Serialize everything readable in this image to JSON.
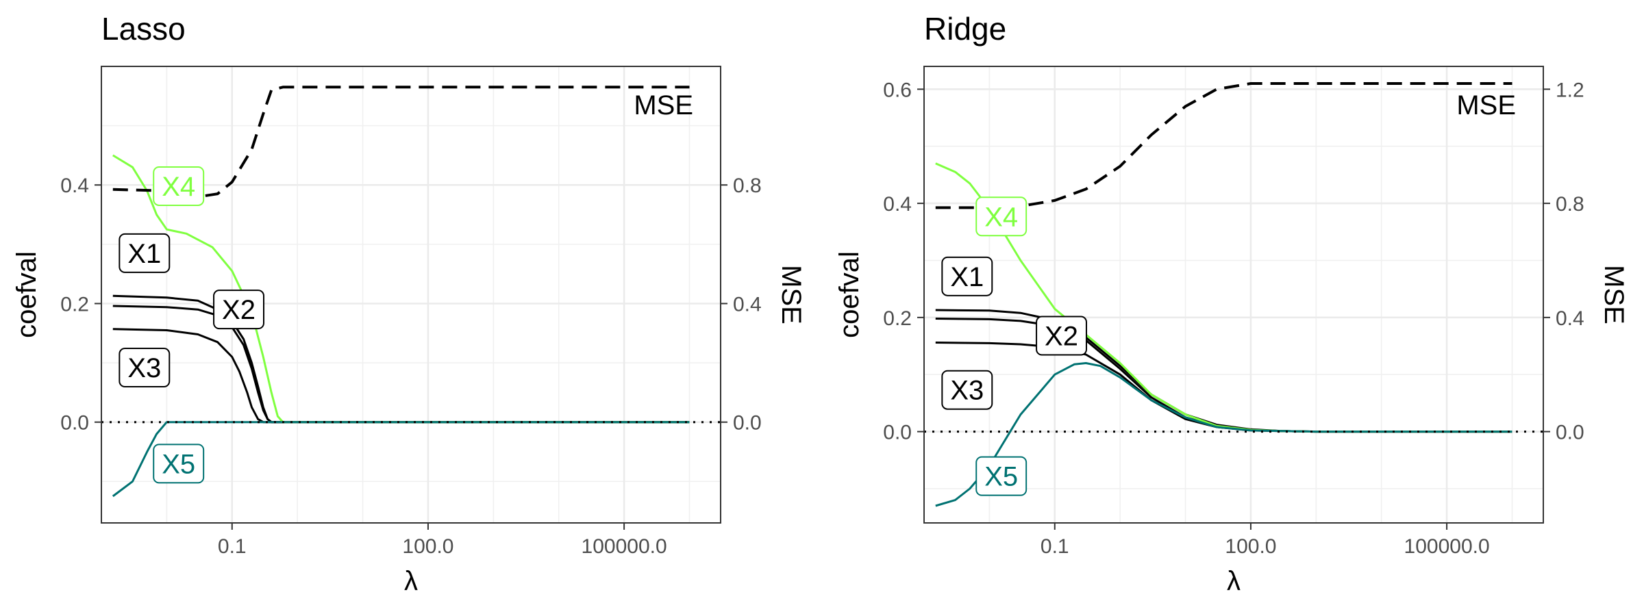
{
  "chart_data": [
    {
      "type": "line",
      "title": "Lasso",
      "xlabel": "λ",
      "ylabel": "coefval",
      "y2label": "MSE",
      "x_scale": "log10",
      "xlim": [
        0.001,
        3000000
      ],
      "ylim": [
        -0.17,
        0.6
      ],
      "y2lim": [
        -0.34,
        1.2
      ],
      "x_ticks": [
        0.1,
        100,
        100000
      ],
      "x_tick_labels": [
        "0.1",
        "100.0",
        "100000.0"
      ],
      "y_ticks": [
        0,
        0.2,
        0.4
      ],
      "y_tick_labels": [
        "0.0",
        "0.2",
        "0.4"
      ],
      "y2_ticks": [
        0,
        0.4,
        0.8
      ],
      "y2_tick_labels": [
        "0.0",
        "0.4",
        "0.8"
      ],
      "grid": true,
      "zero_line": "dotted",
      "series": [
        {
          "name": "X1",
          "color": "#000000",
          "x": [
            0.0015,
            0.01,
            0.03,
            0.06,
            0.1,
            0.15,
            0.2,
            0.25,
            0.3,
            0.35,
            0.4,
            1,
            1000000
          ],
          "y": [
            0.213,
            0.21,
            0.205,
            0.19,
            0.17,
            0.14,
            0.1,
            0.06,
            0.025,
            0.005,
            0,
            0,
            0
          ]
        },
        {
          "name": "X2",
          "color": "#000000",
          "x": [
            0.0015,
            0.01,
            0.03,
            0.06,
            0.1,
            0.15,
            0.2,
            0.25,
            0.3,
            0.35,
            0.4,
            1,
            1000000
          ],
          "y": [
            0.196,
            0.194,
            0.19,
            0.18,
            0.16,
            0.13,
            0.09,
            0.05,
            0.02,
            0.005,
            0,
            0,
            0
          ]
        },
        {
          "name": "X3",
          "color": "#000000",
          "x": [
            0.0015,
            0.01,
            0.03,
            0.06,
            0.1,
            0.13,
            0.17,
            0.2,
            0.25,
            0.3,
            1,
            1000000
          ],
          "y": [
            0.157,
            0.155,
            0.148,
            0.135,
            0.11,
            0.085,
            0.05,
            0.025,
            0.005,
            0,
            0,
            0
          ]
        },
        {
          "name": "X4",
          "color": "#7FFF3F",
          "x": [
            0.0015,
            0.003,
            0.005,
            0.007,
            0.01,
            0.02,
            0.05,
            0.1,
            0.2,
            0.3,
            0.4,
            0.5,
            0.6,
            1,
            1000000
          ],
          "y": [
            0.45,
            0.43,
            0.39,
            0.35,
            0.325,
            0.318,
            0.295,
            0.255,
            0.185,
            0.11,
            0.05,
            0.01,
            0,
            0,
            0
          ]
        },
        {
          "name": "X5",
          "color": "#007272",
          "x": [
            0.0015,
            0.003,
            0.005,
            0.007,
            0.01,
            1000000
          ],
          "y": [
            -0.125,
            -0.1,
            -0.05,
            -0.02,
            0,
            0
          ]
        },
        {
          "name": "MSE",
          "axis": "right",
          "dash": "dashed",
          "color": "#000000",
          "x": [
            0.0015,
            0.01,
            0.03,
            0.06,
            0.1,
            0.2,
            0.3,
            0.4,
            0.6,
            1,
            1000000
          ],
          "y": [
            0.785,
            0.78,
            0.76,
            0.77,
            0.81,
            0.92,
            1.04,
            1.12,
            1.13,
            1.13,
            1.13
          ]
        }
      ],
      "labels": [
        {
          "text": "X1",
          "color": "#000000",
          "x": 0.0018,
          "y": 0.285
        },
        {
          "text": "X2",
          "color": "#000000",
          "x": 0.05,
          "y": 0.19
        },
        {
          "text": "X3",
          "color": "#000000",
          "x": 0.0018,
          "y": 0.092
        },
        {
          "text": "X4",
          "color": "#7FFF3F",
          "x": 0.006,
          "y": 0.398
        },
        {
          "text": "X5",
          "color": "#007272",
          "x": 0.006,
          "y": -0.07
        }
      ]
    },
    {
      "type": "line",
      "title": "Ridge",
      "xlabel": "λ",
      "ylabel": "coefval",
      "y2label": "MSE",
      "x_scale": "log10",
      "xlim": [
        0.001,
        3000000
      ],
      "ylim": [
        -0.16,
        0.64
      ],
      "y2lim": [
        -0.32,
        1.28
      ],
      "x_ticks": [
        0.1,
        100,
        100000
      ],
      "x_tick_labels": [
        "0.1",
        "100.0",
        "100000.0"
      ],
      "y_ticks": [
        0,
        0.2,
        0.4,
        0.6
      ],
      "y_tick_labels": [
        "0.0",
        "0.2",
        "0.4",
        "0.6"
      ],
      "y2_ticks": [
        0,
        0.4,
        0.8,
        1.2
      ],
      "y2_tick_labels": [
        "0.0",
        "0.4",
        "0.8",
        "1.2"
      ],
      "grid": true,
      "zero_line": "dotted",
      "series": [
        {
          "name": "X1",
          "color": "#000000",
          "x": [
            0.0015,
            0.01,
            0.03,
            0.1,
            0.3,
            1,
            3,
            10,
            30,
            100,
            300,
            1000,
            1000000
          ],
          "y": [
            0.213,
            0.212,
            0.208,
            0.195,
            0.165,
            0.115,
            0.065,
            0.03,
            0.012,
            0.004,
            0.001,
            0,
            0
          ]
        },
        {
          "name": "X2",
          "color": "#000000",
          "x": [
            0.0015,
            0.01,
            0.03,
            0.1,
            0.3,
            1,
            3,
            10,
            30,
            100,
            300,
            1000,
            1000000
          ],
          "y": [
            0.198,
            0.197,
            0.194,
            0.185,
            0.16,
            0.11,
            0.06,
            0.025,
            0.01,
            0.003,
            0.001,
            0,
            0
          ]
        },
        {
          "name": "X3",
          "color": "#000000",
          "x": [
            0.0015,
            0.01,
            0.03,
            0.1,
            0.3,
            1,
            3,
            10,
            30,
            100,
            300,
            1000,
            1000000
          ],
          "y": [
            0.156,
            0.155,
            0.153,
            0.148,
            0.135,
            0.1,
            0.055,
            0.022,
            0.008,
            0.002,
            0.001,
            0,
            0
          ]
        },
        {
          "name": "X4",
          "color": "#7FFF3F",
          "x": [
            0.0015,
            0.003,
            0.005,
            0.01,
            0.03,
            0.1,
            0.3,
            1,
            3,
            10,
            30,
            100,
            300,
            1000,
            1000000
          ],
          "y": [
            0.47,
            0.455,
            0.435,
            0.39,
            0.3,
            0.215,
            0.17,
            0.12,
            0.065,
            0.03,
            0.01,
            0.003,
            0.001,
            0,
            0
          ]
        },
        {
          "name": "X5",
          "color": "#007272",
          "x": [
            0.0015,
            0.003,
            0.005,
            0.01,
            0.03,
            0.1,
            0.2,
            0.3,
            0.5,
            1,
            3,
            10,
            30,
            100,
            1000,
            1000000
          ],
          "y": [
            -0.13,
            -0.12,
            -0.1,
            -0.06,
            0.03,
            0.1,
            0.118,
            0.12,
            0.115,
            0.095,
            0.055,
            0.025,
            0.008,
            0.002,
            0,
            0
          ]
        },
        {
          "name": "MSE",
          "axis": "right",
          "dash": "dashed",
          "color": "#000000",
          "x": [
            0.0015,
            0.01,
            0.03,
            0.1,
            0.3,
            1,
            3,
            10,
            30,
            100,
            300,
            1000,
            1000000
          ],
          "y": [
            0.785,
            0.785,
            0.79,
            0.81,
            0.85,
            0.93,
            1.04,
            1.14,
            1.2,
            1.22,
            1.22,
            1.22,
            1.22
          ]
        }
      ],
      "labels": [
        {
          "text": "X1",
          "color": "#000000",
          "x": 0.0018,
          "y": 0.272
        },
        {
          "text": "X2",
          "color": "#000000",
          "x": 0.05,
          "y": 0.168
        },
        {
          "text": "X3",
          "color": "#000000",
          "x": 0.0018,
          "y": 0.073
        },
        {
          "text": "X4",
          "color": "#7FFF3F",
          "x": 0.006,
          "y": 0.377
        },
        {
          "text": "X5",
          "color": "#007272",
          "x": 0.006,
          "y": -0.078
        }
      ]
    }
  ]
}
